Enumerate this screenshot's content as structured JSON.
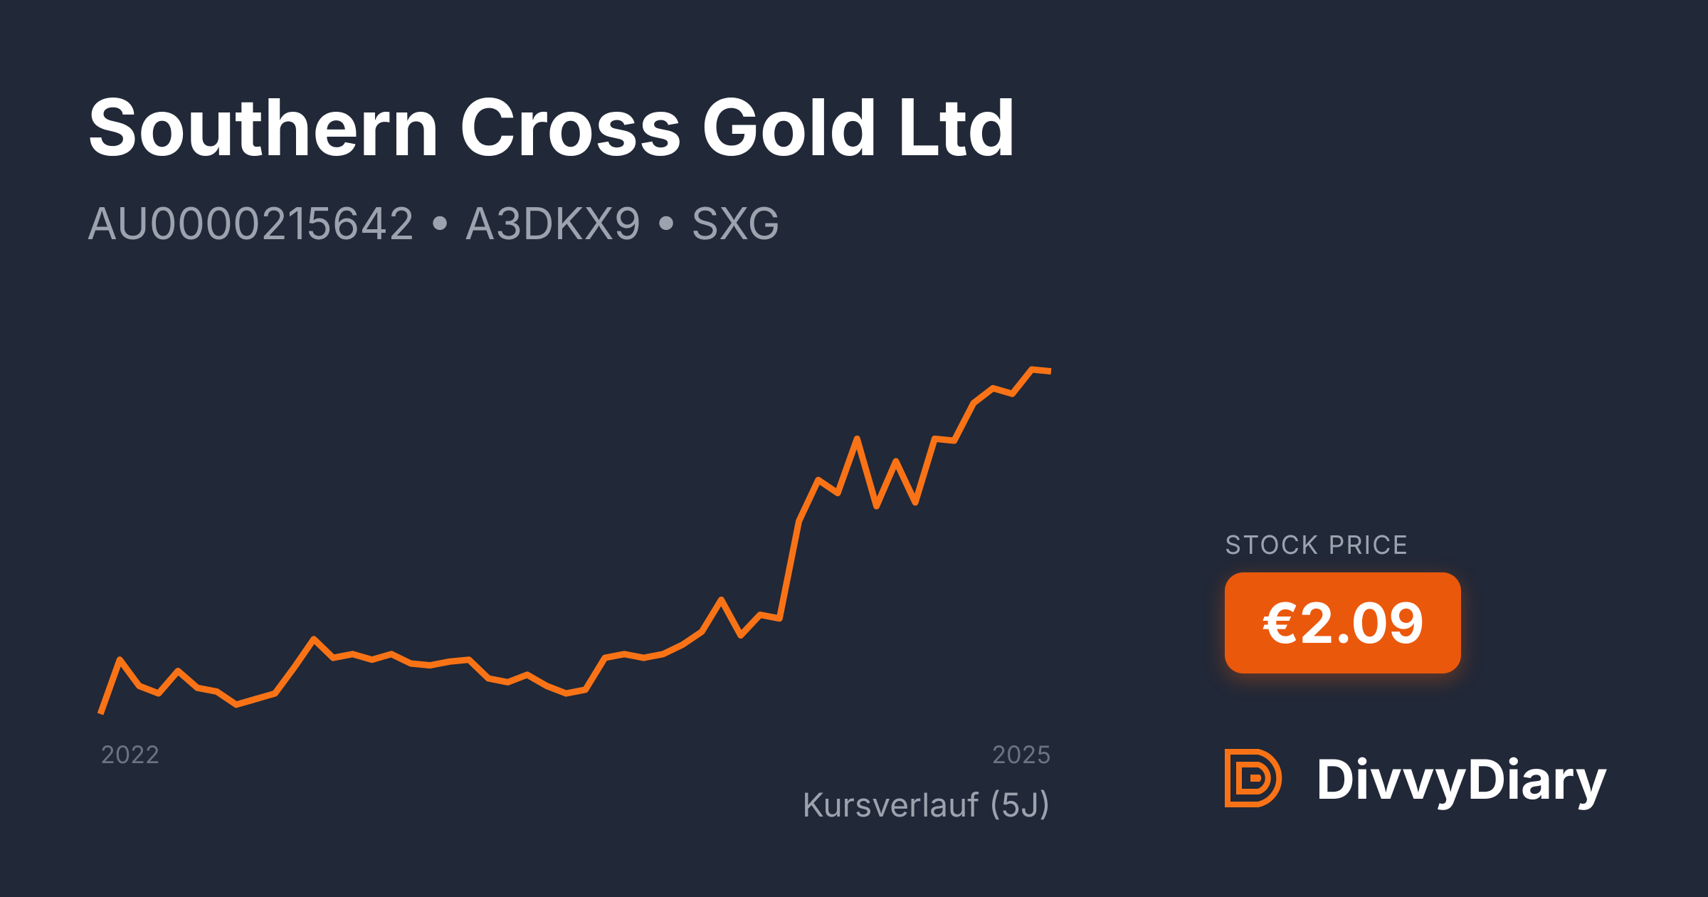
{
  "chart_data": {
    "type": "line",
    "title": "Southern Cross Gold Ltd",
    "subtitle": "AU0000215642 • A3DKX9 • SXG",
    "caption": "Kursverlauf (5J)",
    "categories": [
      "2022",
      null,
      null,
      null,
      null,
      null,
      null,
      null,
      null,
      null,
      null,
      null,
      null,
      null,
      null,
      null,
      null,
      null,
      null,
      null,
      null,
      null,
      null,
      null,
      null,
      null,
      null,
      null,
      null,
      null,
      null,
      null,
      null,
      null,
      null,
      null,
      null,
      null,
      null,
      null,
      null,
      null,
      null,
      null,
      null,
      null,
      null,
      null,
      null,
      "2025"
    ],
    "series": [
      {
        "color": "#f97316",
        "values": [
          0.26,
          0.55,
          0.41,
          0.37,
          0.49,
          0.4,
          0.38,
          0.31,
          0.34,
          0.37,
          0.51,
          0.66,
          0.56,
          0.58,
          0.55,
          0.58,
          0.53,
          0.52,
          0.54,
          0.55,
          0.45,
          0.43,
          0.47,
          0.41,
          0.37,
          0.39,
          0.56,
          0.58,
          0.56,
          0.58,
          0.63,
          0.7,
          0.87,
          0.68,
          0.79,
          0.77,
          1.29,
          1.51,
          1.44,
          1.73,
          1.37,
          1.61,
          1.39,
          1.73,
          1.72,
          1.92,
          2.0,
          1.97,
          2.1,
          2.09
        ]
      }
    ]
  },
  "price": {
    "label": "STOCK PRICE",
    "value": "€2.09"
  },
  "brand": "DivvyDiary"
}
